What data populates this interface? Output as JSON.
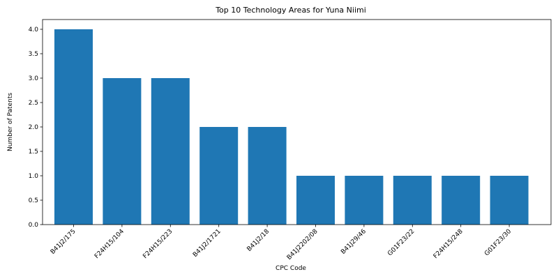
{
  "chart_data": {
    "type": "bar",
    "title": "Top 10 Technology Areas for Yuna Niimi",
    "xlabel": "CPC Code",
    "ylabel": "Number of Patents",
    "categories": [
      "B41J2/175",
      "F24H15/104",
      "F24H15/223",
      "B41J2/1721",
      "B41J2/18",
      "B41J2202/08",
      "B41J29/46",
      "G01F23/22",
      "F24H15/248",
      "G01F23/30"
    ],
    "values": [
      4,
      3,
      3,
      2,
      2,
      1,
      1,
      1,
      1,
      1
    ],
    "ylim": [
      0,
      4.2
    ],
    "yticks": [
      "0.0",
      "0.5",
      "1.0",
      "1.5",
      "2.0",
      "2.5",
      "3.0",
      "3.5",
      "4.0"
    ],
    "bar_color": "#1f77b4",
    "grid": false,
    "legend": "none"
  }
}
